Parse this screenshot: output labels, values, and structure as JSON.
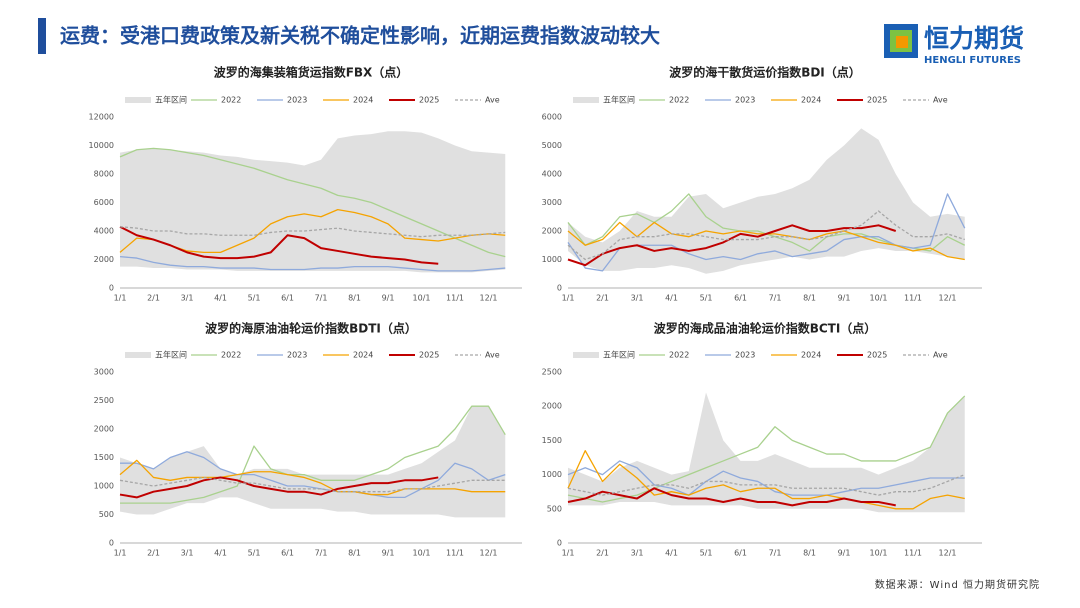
{
  "header": {
    "title": "运费：受港口费政策及新关税不确定性影响，近期运费指数波动较大"
  },
  "logo": {
    "name": "恒力期货",
    "subtitle": "HENGLI FUTURES"
  },
  "source": "数据来源：Wind 恒力期货研究院",
  "chart_data": [
    {
      "type": "line",
      "title": "波罗的海集装箱货运指数FBX（点）",
      "categories": [
        "1/1",
        null,
        "2/1",
        null,
        "3/1",
        null,
        "4/1",
        null,
        "5/1",
        null,
        "6/1",
        null,
        "7/1",
        null,
        "8/1",
        null,
        "9/1",
        null,
        "10/1",
        null,
        "11/1",
        null,
        "12/1",
        null
      ],
      "ylim": [
        0,
        12000
      ],
      "yticks": [
        0,
        2000,
        4000,
        6000,
        8000,
        10000,
        12000
      ],
      "grid": false,
      "series": [
        {
          "name": "五年区间",
          "color": "#e0e0e0",
          "values": [
            9500,
            9700,
            9800,
            9700,
            9600,
            9500,
            9300,
            9200,
            9000,
            8900,
            8800,
            8600,
            9000,
            10500,
            10700,
            10800,
            11000,
            11000,
            10900,
            10500,
            10000,
            9600,
            9500,
            9400
          ],
          "low": [
            1500,
            1500,
            1400,
            1400,
            1300,
            1300,
            1300,
            1200,
            1200,
            1200,
            1200,
            1200,
            1200,
            1200,
            1200,
            1200,
            1200,
            1200,
            1100,
            1100,
            1100,
            1100,
            1200,
            1300
          ]
        },
        {
          "name": "2022",
          "color": "#a9d18e",
          "values": [
            9200,
            9700,
            9800,
            9700,
            9500,
            9300,
            9000,
            8700,
            8400,
            8000,
            7600,
            7300,
            7000,
            6500,
            6300,
            6000,
            5500,
            5000,
            4500,
            4000,
            3500,
            3000,
            2500,
            2200
          ]
        },
        {
          "name": "2023",
          "color": "#8faadc",
          "values": [
            2200,
            2100,
            1800,
            1600,
            1500,
            1500,
            1400,
            1400,
            1400,
            1300,
            1300,
            1300,
            1400,
            1400,
            1500,
            1500,
            1500,
            1400,
            1300,
            1200,
            1200,
            1200,
            1300,
            1400
          ]
        },
        {
          "name": "2024",
          "color": "#f5a300",
          "values": [
            2500,
            3500,
            3400,
            3000,
            2600,
            2500,
            2500,
            3000,
            3500,
            4500,
            5000,
            5200,
            5000,
            5500,
            5300,
            5000,
            4500,
            3500,
            3400,
            3300,
            3500,
            3700,
            3800,
            3700
          ]
        },
        {
          "name": "2025",
          "color": "#c00000",
          "width": 2,
          "values": [
            4300,
            3700,
            3400,
            3000,
            2500,
            2200,
            2100,
            2100,
            2200,
            2500,
            3700,
            3500,
            2800,
            2600,
            2400,
            2200,
            2100,
            2000,
            1800,
            1700,
            null,
            null,
            null,
            null
          ]
        },
        {
          "name": "Ave",
          "color": "#a6a6a6",
          "dashed": true,
          "values": [
            4300,
            4200,
            4000,
            4000,
            3800,
            3800,
            3700,
            3700,
            3700,
            3900,
            4000,
            4000,
            4100,
            4200,
            4000,
            3900,
            3800,
            3700,
            3600,
            3700,
            3700,
            3700,
            3800,
            3900
          ]
        }
      ]
    },
    {
      "type": "line",
      "title": "波罗的海干散货运价指数BDI（点）",
      "categories": [
        "1/1",
        null,
        "2/1",
        null,
        "3/1",
        null,
        "4/1",
        null,
        "5/1",
        null,
        "6/1",
        null,
        "7/1",
        null,
        "8/1",
        null,
        "9/1",
        null,
        "10/1",
        null,
        "11/1",
        null,
        "12/1",
        null
      ],
      "ylim": [
        0,
        6000
      ],
      "yticks": [
        0,
        1000,
        2000,
        3000,
        4000,
        5000,
        6000
      ],
      "grid": false,
      "series": [
        {
          "name": "五年区间",
          "color": "#e0e0e0",
          "values": [
            2300,
            1800,
            1600,
            2000,
            2700,
            2500,
            2500,
            3200,
            3300,
            2800,
            3000,
            3200,
            3300,
            3500,
            3800,
            4500,
            5000,
            5600,
            5200,
            4000,
            3000,
            2500,
            2600,
            2500
          ],
          "low": [
            1300,
            800,
            600,
            600,
            700,
            700,
            800,
            700,
            500,
            600,
            800,
            900,
            1000,
            1100,
            1000,
            1100,
            1100,
            1300,
            1400,
            1300,
            1300,
            1200,
            1100,
            1000
          ]
        },
        {
          "name": "2022",
          "color": "#a9d18e",
          "values": [
            2300,
            1500,
            1800,
            2500,
            2600,
            2300,
            2700,
            3300,
            2500,
            2100,
            2000,
            2000,
            1800,
            1600,
            1300,
            1800,
            1900,
            1900,
            1700,
            1500,
            1400,
            1300,
            1800,
            1500
          ]
        },
        {
          "name": "2023",
          "color": "#8faadc",
          "values": [
            1600,
            700,
            600,
            1400,
            1500,
            1500,
            1500,
            1200,
            1000,
            1100,
            1000,
            1200,
            1300,
            1100,
            1200,
            1300,
            1700,
            1800,
            1800,
            1500,
            1400,
            1500,
            3300,
            2100
          ]
        },
        {
          "name": "2024",
          "color": "#f5a300",
          "values": [
            2000,
            1500,
            1700,
            2300,
            1800,
            2300,
            1900,
            1800,
            2000,
            1900,
            2000,
            1900,
            1900,
            1800,
            1700,
            1900,
            2000,
            1800,
            1600,
            1500,
            1300,
            1400,
            1100,
            1000
          ]
        },
        {
          "name": "2025",
          "color": "#c00000",
          "width": 2,
          "values": [
            1000,
            800,
            1200,
            1400,
            1500,
            1300,
            1400,
            1300,
            1400,
            1600,
            1900,
            1800,
            2000,
            2200,
            2000,
            2000,
            2100,
            2100,
            2200,
            2000,
            null,
            null,
            null,
            null
          ]
        },
        {
          "name": "Ave",
          "color": "#a6a6a6",
          "dashed": true,
          "values": [
            1500,
            1000,
            1200,
            1700,
            1800,
            1800,
            1900,
            1900,
            1800,
            1700,
            1700,
            1700,
            1800,
            1800,
            1700,
            1800,
            2000,
            2200,
            2700,
            2200,
            1800,
            1800,
            1900,
            1700
          ]
        }
      ]
    },
    {
      "type": "line",
      "title": "波罗的海原油油轮运价指数BDTI（点）",
      "categories": [
        "1/1",
        null,
        "2/1",
        null,
        "3/1",
        null,
        "4/1",
        null,
        "5/1",
        null,
        "6/1",
        null,
        "7/1",
        null,
        "8/1",
        null,
        "9/1",
        null,
        "10/1",
        null,
        "11/1",
        null,
        "12/1",
        null
      ],
      "ylim": [
        0,
        3000
      ],
      "yticks": [
        0,
        500,
        1000,
        1500,
        2000,
        2500,
        3000
      ],
      "grid": false,
      "series": [
        {
          "name": "五年区间",
          "color": "#e0e0e0",
          "values": [
            1500,
            1400,
            1300,
            1500,
            1600,
            1700,
            1300,
            1200,
            1300,
            1300,
            1300,
            1200,
            1200,
            1200,
            1200,
            1200,
            1200,
            1300,
            1400,
            1600,
            1800,
            2400,
            2400,
            1900
          ],
          "low": [
            550,
            500,
            500,
            600,
            700,
            700,
            800,
            800,
            700,
            600,
            600,
            600,
            600,
            550,
            550,
            500,
            500,
            500,
            500,
            500,
            450,
            450,
            450,
            450
          ]
        },
        {
          "name": "2022",
          "color": "#a9d18e",
          "values": [
            700,
            700,
            700,
            700,
            750,
            800,
            900,
            1000,
            1700,
            1300,
            1200,
            1200,
            1100,
            1100,
            1100,
            1200,
            1300,
            1500,
            1600,
            1700,
            2000,
            2400,
            2400,
            1900
          ]
        },
        {
          "name": "2023",
          "color": "#8faadc",
          "values": [
            1400,
            1400,
            1300,
            1500,
            1600,
            1500,
            1300,
            1200,
            1200,
            1100,
            1000,
            1000,
            950,
            900,
            900,
            850,
            800,
            800,
            950,
            1100,
            1400,
            1300,
            1100,
            1200
          ]
        },
        {
          "name": "2024",
          "color": "#f5a300",
          "values": [
            1200,
            1450,
            1150,
            1100,
            1150,
            1150,
            1150,
            1200,
            1250,
            1250,
            1200,
            1150,
            1050,
            900,
            900,
            850,
            850,
            950,
            950,
            950,
            950,
            900,
            900,
            900
          ]
        },
        {
          "name": "2025",
          "color": "#c00000",
          "width": 2,
          "values": [
            850,
            800,
            900,
            950,
            1000,
            1100,
            1150,
            1100,
            1000,
            950,
            900,
            900,
            850,
            950,
            1000,
            1050,
            1050,
            1100,
            1100,
            1150,
            null,
            null,
            null,
            null
          ]
        },
        {
          "name": "Ave",
          "color": "#a6a6a6",
          "dashed": true,
          "values": [
            1100,
            1050,
            1000,
            1050,
            1100,
            1150,
            1100,
            1050,
            1050,
            1000,
            950,
            950,
            950,
            900,
            900,
            900,
            900,
            950,
            950,
            1000,
            1050,
            1100,
            1100,
            1100
          ]
        }
      ]
    },
    {
      "type": "line",
      "title": "波罗的海成品油油轮运价指数BCTI（点）",
      "categories": [
        "1/1",
        null,
        "2/1",
        null,
        "3/1",
        null,
        "4/1",
        null,
        "5/1",
        null,
        "6/1",
        null,
        "7/1",
        null,
        "8/1",
        null,
        "9/1",
        null,
        "10/1",
        null,
        "11/1",
        null,
        "12/1",
        null
      ],
      "ylim": [
        0,
        2500
      ],
      "yticks": [
        0,
        500,
        1000,
        1500,
        2000,
        2500
      ],
      "grid": false,
      "series": [
        {
          "name": "五年区间",
          "color": "#e0e0e0",
          "values": [
            1100,
            1000,
            900,
            1100,
            1200,
            1100,
            1000,
            1050,
            2200,
            1500,
            1200,
            1200,
            1300,
            1200,
            1100,
            1100,
            1100,
            1100,
            1000,
            1100,
            1200,
            1400,
            1900,
            2150
          ],
          "low": [
            550,
            550,
            550,
            600,
            600,
            600,
            550,
            550,
            550,
            550,
            550,
            500,
            500,
            500,
            500,
            500,
            500,
            500,
            450,
            450,
            450,
            450,
            450,
            450
          ]
        },
        {
          "name": "2022",
          "color": "#a9d18e",
          "values": [
            700,
            650,
            600,
            650,
            700,
            800,
            900,
            1000,
            1100,
            1200,
            1300,
            1400,
            1700,
            1500,
            1400,
            1300,
            1300,
            1200,
            1200,
            1200,
            1300,
            1400,
            1900,
            2150
          ]
        },
        {
          "name": "2023",
          "color": "#8faadc",
          "values": [
            1000,
            1100,
            1000,
            1200,
            1100,
            850,
            800,
            700,
            900,
            1050,
            950,
            900,
            750,
            700,
            700,
            700,
            750,
            800,
            800,
            850,
            900,
            950,
            950,
            950
          ]
        },
        {
          "name": "2024",
          "color": "#f5a300",
          "values": [
            800,
            1350,
            900,
            1150,
            950,
            700,
            750,
            700,
            800,
            850,
            750,
            800,
            800,
            650,
            650,
            700,
            650,
            600,
            550,
            500,
            500,
            650,
            700,
            650
          ]
        },
        {
          "name": "2025",
          "color": "#c00000",
          "width": 2,
          "values": [
            600,
            650,
            750,
            700,
            650,
            800,
            700,
            650,
            650,
            600,
            650,
            600,
            600,
            550,
            600,
            600,
            650,
            600,
            600,
            550,
            null,
            null,
            null,
            null
          ]
        },
        {
          "name": "Ave",
          "color": "#a6a6a6",
          "dashed": true,
          "values": [
            800,
            750,
            700,
            750,
            800,
            850,
            850,
            800,
            900,
            900,
            850,
            850,
            850,
            800,
            800,
            800,
            800,
            750,
            700,
            750,
            750,
            800,
            900,
            1000
          ]
        }
      ]
    }
  ]
}
